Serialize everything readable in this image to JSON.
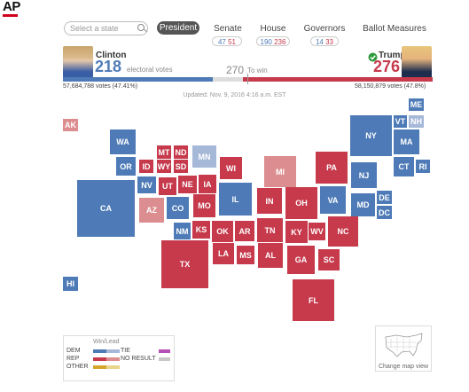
{
  "brand": {
    "logo": "AP"
  },
  "search": {
    "placeholder": "Select a state"
  },
  "tabs": [
    {
      "label": "President",
      "active": true
    },
    {
      "label": "Senate",
      "dem": "47",
      "rep": "51"
    },
    {
      "label": "House",
      "dem": "190",
      "rep": "236"
    },
    {
      "label": "Governors",
      "dem": "14",
      "rep": "33"
    },
    {
      "label": "Ballot Measures"
    }
  ],
  "candidates": {
    "clinton": {
      "name": "Clinton",
      "ev": "218",
      "ev_label": "electoral votes",
      "votes": "57,684,788 votes (47.41%)"
    },
    "trump": {
      "name": "Trump",
      "ev": "276",
      "votes": "58,150,879 votes (47.8%)"
    }
  },
  "to_win": {
    "value": "270",
    "label": "To win"
  },
  "progress": {
    "dem_fraction": 0.4052,
    "rep_fraction": 0.513
  },
  "updated": "Updated: Nov. 9, 2016 4:16 a.m. EST",
  "colors": {
    "dem": "#4e7bb7",
    "dem_lead": "#a6b8d8",
    "rep": "#c63a4c",
    "rep_lead": "#dc8d8f",
    "tie": "#b54fb5",
    "no_result": "#c7c7c7",
    "other": "#d4a72c"
  },
  "states": [
    {
      "abbr": "AK",
      "party": "rep_lead"
    },
    {
      "abbr": "ME",
      "party": "dem"
    },
    {
      "abbr": "VT",
      "party": "dem"
    },
    {
      "abbr": "NH",
      "party": "dem_lead"
    },
    {
      "abbr": "WA",
      "party": "dem"
    },
    {
      "abbr": "MT",
      "party": "rep"
    },
    {
      "abbr": "ND",
      "party": "rep"
    },
    {
      "abbr": "MN",
      "party": "dem_lead"
    },
    {
      "abbr": "NY",
      "party": "dem"
    },
    {
      "abbr": "MA",
      "party": "dem"
    },
    {
      "abbr": "OR",
      "party": "dem"
    },
    {
      "abbr": "ID",
      "party": "rep"
    },
    {
      "abbr": "WY",
      "party": "rep"
    },
    {
      "abbr": "SD",
      "party": "rep"
    },
    {
      "abbr": "WI",
      "party": "rep"
    },
    {
      "abbr": "MI",
      "party": "rep_lead"
    },
    {
      "abbr": "PA",
      "party": "rep"
    },
    {
      "abbr": "CT",
      "party": "dem"
    },
    {
      "abbr": "RI",
      "party": "dem"
    },
    {
      "abbr": "NV",
      "party": "dem"
    },
    {
      "abbr": "UT",
      "party": "rep"
    },
    {
      "abbr": "NE",
      "party": "rep"
    },
    {
      "abbr": "IA",
      "party": "rep"
    },
    {
      "abbr": "NJ",
      "party": "dem"
    },
    {
      "abbr": "CA",
      "party": "dem"
    },
    {
      "abbr": "IL",
      "party": "dem"
    },
    {
      "abbr": "IN",
      "party": "rep"
    },
    {
      "abbr": "OH",
      "party": "rep"
    },
    {
      "abbr": "VA",
      "party": "dem"
    },
    {
      "abbr": "DE",
      "party": "dem"
    },
    {
      "abbr": "AZ",
      "party": "rep_lead"
    },
    {
      "abbr": "CO",
      "party": "dem"
    },
    {
      "abbr": "MO",
      "party": "rep"
    },
    {
      "abbr": "MD",
      "party": "dem"
    },
    {
      "abbr": "DC",
      "party": "dem"
    },
    {
      "abbr": "NM",
      "party": "dem"
    },
    {
      "abbr": "KS",
      "party": "rep"
    },
    {
      "abbr": "OK",
      "party": "rep"
    },
    {
      "abbr": "AR",
      "party": "rep"
    },
    {
      "abbr": "TN",
      "party": "rep"
    },
    {
      "abbr": "KY",
      "party": "rep"
    },
    {
      "abbr": "WV",
      "party": "rep"
    },
    {
      "abbr": "NC",
      "party": "rep"
    },
    {
      "abbr": "TX",
      "party": "rep"
    },
    {
      "abbr": "LA",
      "party": "rep"
    },
    {
      "abbr": "MS",
      "party": "rep"
    },
    {
      "abbr": "AL",
      "party": "rep"
    },
    {
      "abbr": "GA",
      "party": "rep"
    },
    {
      "abbr": "SC",
      "party": "rep"
    },
    {
      "abbr": "HI",
      "party": "dem"
    },
    {
      "abbr": "FL",
      "party": "rep"
    }
  ],
  "legend": {
    "title": "Win/Lead",
    "dem": "DEM",
    "rep": "REP",
    "other": "OTHER",
    "tie": "TIE",
    "no_result": "NO RESULT"
  },
  "map_toggle": {
    "label": "Change map view"
  }
}
